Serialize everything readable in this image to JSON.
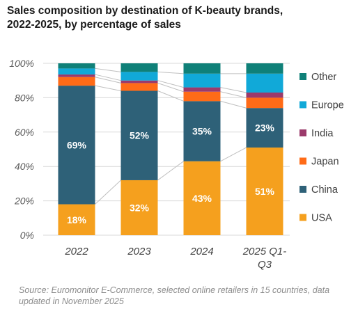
{
  "title_line1": "Sales composition by destination of K-beauty brands,",
  "title_line2": "2022-2025, by percentage of sales",
  "source_line1": "Source: Euromonitor E-Commerce, selected online retailers in 15 countries, data",
  "source_line2": "updated in November 2025",
  "chart_data": {
    "type": "bar",
    "stacked": true,
    "categories": [
      "2022",
      "2023",
      "2024",
      "2025 Q1-Q3"
    ],
    "category_lines": [
      [
        "2022"
      ],
      [
        "2023"
      ],
      [
        "2024"
      ],
      [
        "2025 Q1-",
        "Q3"
      ]
    ],
    "series": [
      {
        "name": "USA",
        "values": [
          18,
          32,
          43,
          51
        ],
        "color": "#f5a01e",
        "labels": [
          "18%",
          "32%",
          "43%",
          "51%"
        ]
      },
      {
        "name": "China",
        "values": [
          69,
          52,
          35,
          23
        ],
        "color": "#2e6178",
        "labels": [
          "69%",
          "52%",
          "35%",
          "23%"
        ]
      },
      {
        "name": "Japan",
        "values": [
          5,
          4.5,
          5.5,
          6
        ],
        "color": "#ff6b17",
        "labels": []
      },
      {
        "name": "India",
        "values": [
          1.5,
          1.5,
          2.5,
          3
        ],
        "color": "#9b3a6b",
        "labels": []
      },
      {
        "name": "Europe",
        "values": [
          3.5,
          5,
          8,
          11
        ],
        "color": "#11a9d8",
        "labels": []
      },
      {
        "name": "Other",
        "values": [
          3,
          5,
          6,
          6
        ],
        "color": "#0f8078",
        "labels": []
      }
    ],
    "ylim": [
      0,
      100
    ],
    "yticks": [
      "0%",
      "20%",
      "40%",
      "60%",
      "80%",
      "100%"
    ],
    "grid": true,
    "legend_placement": "right",
    "legend_order": [
      "Other",
      "Europe",
      "India",
      "Japan",
      "China",
      "USA"
    ]
  }
}
